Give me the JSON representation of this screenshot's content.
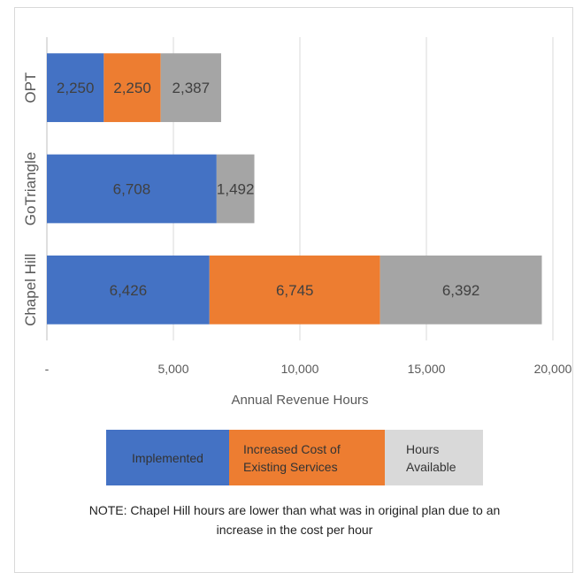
{
  "chart_data": {
    "type": "bar",
    "orientation": "horizontal",
    "stacked": true,
    "categories": [
      "OPT",
      "GoTriangle",
      "Chapel Hill"
    ],
    "series": [
      {
        "name": "Implemented",
        "values": [
          2250,
          6708,
          6426
        ],
        "color": "#4472C4"
      },
      {
        "name": "Increased Cost of Existing Services",
        "values": [
          2250,
          0,
          6745
        ],
        "color": "#ED7D31"
      },
      {
        "name": "Hours Available",
        "values": [
          2387,
          1492,
          6392
        ],
        "color": "#A5A5A5"
      }
    ],
    "data_labels": [
      [
        "2,250",
        "6,708",
        "6,426"
      ],
      [
        "2,250",
        "",
        "6,745"
      ],
      [
        "2,387",
        "1,492",
        "6,392"
      ]
    ],
    "xlabel": "Annual Revenue Hours",
    "xlim": [
      0,
      20000
    ],
    "x_ticks": [
      0,
      5000,
      10000,
      15000,
      20000
    ],
    "x_tick_labels": [
      "-",
      "5,000",
      "10,000",
      "15,000",
      "20,000"
    ],
    "grid": true,
    "legend_position": "bottom"
  },
  "legend": {
    "implemented": "Implemented",
    "increased_cost": "Increased Cost of Existing Services",
    "hours_available": "Hours Available"
  },
  "note": "NOTE: Chapel Hill hours are lower than what was in original plan due to an increase in the cost per hour"
}
